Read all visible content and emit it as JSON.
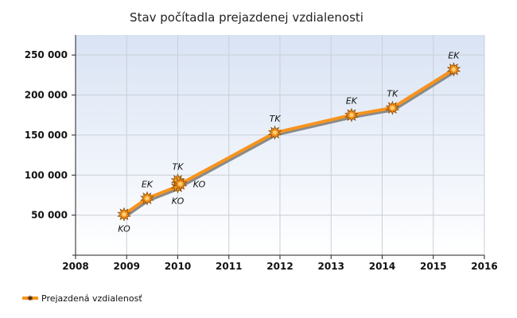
{
  "chart_data": {
    "type": "line",
    "title": "Stav počítadla prejazdenej vzdialenosti",
    "xlabel": "",
    "ylabel": "",
    "xlim": [
      2008,
      2016
    ],
    "ylim": [
      0,
      275000
    ],
    "xticks": [
      2008,
      2009,
      2010,
      2011,
      2012,
      2013,
      2014,
      2015,
      2016
    ],
    "xtick_labels": [
      "2008",
      "2009",
      "2010",
      "2011",
      "2012",
      "2013",
      "2014",
      "2015",
      "2016"
    ],
    "yticks": [
      50000,
      100000,
      150000,
      200000,
      250000
    ],
    "ytick_labels": [
      "50 000",
      "100 000",
      "150 000",
      "200 000",
      "250 000"
    ],
    "grid": true,
    "legend": "bottom-left",
    "series": [
      {
        "name": "Prejazdená vzdialenosť",
        "color": "#f7941d",
        "points": [
          {
            "x": 2008.95,
            "y": 51000,
            "label": "KO",
            "label_pos": "below"
          },
          {
            "x": 2009.4,
            "y": 71000,
            "label": "EK",
            "label_pos": "above"
          },
          {
            "x": 2010.0,
            "y": 86000,
            "label": "KO",
            "label_pos": "below"
          },
          {
            "x": 2010.0,
            "y": 93000,
            "label": "TK",
            "label_pos": "above"
          },
          {
            "x": 2010.05,
            "y": 89000,
            "label": "KO",
            "label_pos": "right"
          },
          {
            "x": 2011.9,
            "y": 153000,
            "label": "TK",
            "label_pos": "above"
          },
          {
            "x": 2013.4,
            "y": 175000,
            "label": "EK",
            "label_pos": "above"
          },
          {
            "x": 2014.2,
            "y": 184000,
            "label": "TK",
            "label_pos": "above"
          },
          {
            "x": 2015.4,
            "y": 232000,
            "label": "EK",
            "label_pos": "above"
          }
        ]
      }
    ]
  }
}
